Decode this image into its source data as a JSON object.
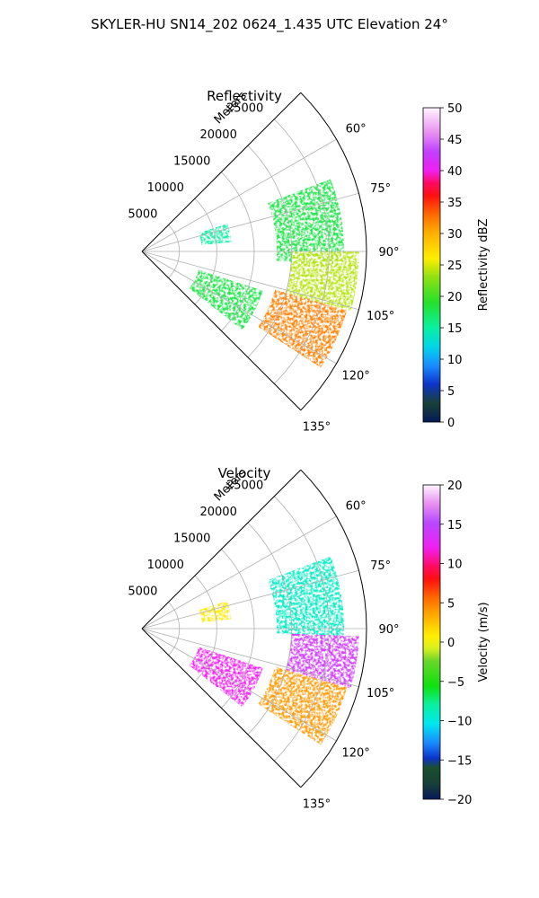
{
  "figure": {
    "title": "SKYLER-HU  SN14_202  0624_1.435 UTC Elevation 24°"
  },
  "chart_data": [
    {
      "type": "heatmap",
      "subtype": "polar-sector",
      "title": "Reflectivity",
      "radial_label": "Meters",
      "r_ticks": [
        "5000",
        "10000",
        "15000",
        "20000",
        "25000"
      ],
      "r_max": 30000,
      "theta_ticks": [
        "60°",
        "75°",
        "90°",
        "105°",
        "120°",
        "135°"
      ],
      "theta_range_deg": [
        45,
        135
      ],
      "theta_zero": "north",
      "theta_direction": "clockwise",
      "grid": true,
      "colorbar": {
        "label": "Reflectivity dBZ",
        "min": 0,
        "max": 50,
        "ticks": [
          "0",
          "5",
          "10",
          "15",
          "20",
          "25",
          "30",
          "35",
          "40",
          "45",
          "50"
        ],
        "colormap": "pyart_HomeyerRainbow"
      },
      "echo_regions": [
        {
          "az": [
            69,
            94
          ],
          "range": [
            18000,
            27000
          ],
          "dbz": 18
        },
        {
          "az": [
            90,
            106
          ],
          "range": [
            20000,
            29000
          ],
          "dbz": 24
        },
        {
          "az": [
            106,
            123
          ],
          "range": [
            18500,
            28500
          ],
          "dbz": 32
        },
        {
          "az": [
            108,
            128
          ],
          "range": [
            8000,
            17000
          ],
          "dbz": 18
        },
        {
          "az": [
            72,
            84
          ],
          "range": [
            8000,
            12000
          ],
          "dbz": 15
        }
      ]
    },
    {
      "type": "heatmap",
      "subtype": "polar-sector",
      "title": "Velocity",
      "radial_label": "Meters",
      "r_ticks": [
        "5000",
        "10000",
        "15000",
        "20000",
        "25000"
      ],
      "r_max": 30000,
      "theta_ticks": [
        "60°",
        "75°",
        "90°",
        "105°",
        "120°",
        "135°"
      ],
      "theta_range_deg": [
        45,
        135
      ],
      "theta_zero": "north",
      "theta_direction": "clockwise",
      "grid": true,
      "colorbar": {
        "label": "Velocity (m/s)",
        "min": -20,
        "max": 20,
        "ticks": [
          "−20",
          "−15",
          "−10",
          "−5",
          "0",
          "5",
          "10",
          "15",
          "20"
        ],
        "colormap": "pyart_BuDRd18"
      },
      "echo_regions": [
        {
          "az": [
            69,
            92
          ],
          "range": [
            18000,
            27000
          ],
          "velocity": -9
        },
        {
          "az": [
            92,
            106
          ],
          "range": [
            20000,
            29000
          ],
          "velocity": 14
        },
        {
          "az": [
            106,
            123
          ],
          "range": [
            18500,
            28500
          ],
          "velocity": 4
        },
        {
          "az": [
            108,
            128
          ],
          "range": [
            8000,
            17000
          ],
          "velocity": 12
        },
        {
          "az": [
            72,
            84
          ],
          "range": [
            8000,
            12000
          ],
          "velocity": 1
        }
      ]
    }
  ]
}
